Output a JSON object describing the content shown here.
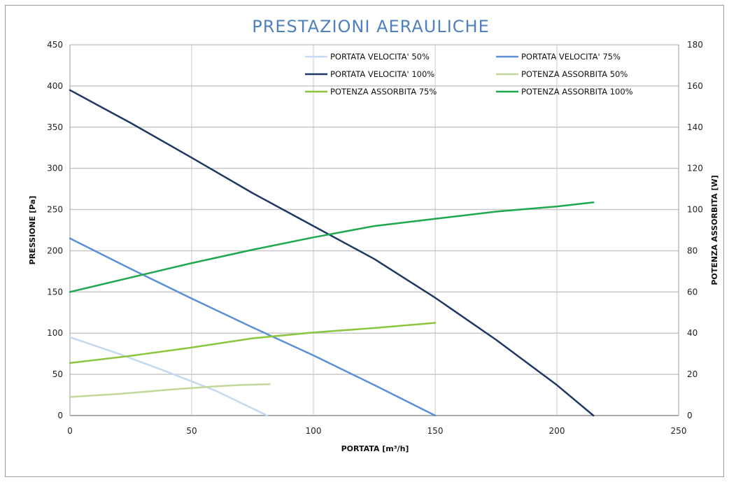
{
  "chart_data": {
    "type": "line",
    "title": "PRESTAZIONI AERAULICHE",
    "xlabel": "PORTATA [m³/h]",
    "ylabel": "PRESSIONE [Pa]",
    "y2label": "POTENZA ASSORBITA [W]",
    "xlim": [
      0,
      250
    ],
    "ylim": [
      0,
      450
    ],
    "y2lim": [
      0,
      180
    ],
    "xticks": [
      0,
      50,
      100,
      150,
      200,
      250
    ],
    "yticks": [
      0,
      50,
      100,
      150,
      200,
      250,
      300,
      350,
      400,
      450
    ],
    "y2ticks": [
      0,
      20,
      40,
      60,
      80,
      100,
      120,
      140,
      160,
      180
    ],
    "grid": true,
    "legend": "top-right",
    "series": [
      {
        "name": "PORTATA VELOCITA' 50%",
        "axis": "left",
        "color": "#c5d9f1",
        "width": 2,
        "x": [
          0,
          20,
          40,
          60,
          81
        ],
        "y": [
          95,
          75,
          53,
          30,
          0
        ]
      },
      {
        "name": "PORTATA VELOCITA' 75%",
        "axis": "left",
        "color": "#5b8fd6",
        "width": 2,
        "x": [
          0,
          25,
          50,
          75,
          100,
          125,
          150
        ],
        "y": [
          215,
          178,
          142,
          107,
          73,
          37,
          0
        ]
      },
      {
        "name": "PORTATA VELOCITA' 100%",
        "axis": "left",
        "color": "#1f3864",
        "width": 2,
        "x": [
          0,
          25,
          50,
          75,
          100,
          125,
          150,
          175,
          200,
          215
        ],
        "y": [
          395,
          355,
          313,
          270,
          230,
          190,
          143,
          92,
          37,
          0
        ]
      },
      {
        "name": "POTENZA ASSORBITA 50%",
        "axis": "right",
        "color": "#c4d79b",
        "width": 2,
        "x": [
          0,
          20,
          40,
          60,
          70,
          82
        ],
        "y": [
          9,
          10.5,
          12.5,
          14.2,
          14.8,
          15.2
        ]
      },
      {
        "name": "POTENZA ASSORBITA 75%",
        "axis": "right",
        "color": "#8cc63f",
        "width": 2,
        "x": [
          0,
          25,
          50,
          75,
          100,
          125,
          150
        ],
        "y": [
          25.5,
          29,
          33,
          37.5,
          40.3,
          42.5,
          45
        ]
      },
      {
        "name": "POTENZA ASSORBITA 100%",
        "axis": "right",
        "color": "#1fa84f",
        "width": 2,
        "x": [
          0,
          25,
          50,
          75,
          100,
          125,
          150,
          175,
          200,
          215
        ],
        "y": [
          60,
          67,
          74,
          80.5,
          86.5,
          92,
          95.5,
          99,
          101.5,
          103.5
        ]
      }
    ]
  }
}
